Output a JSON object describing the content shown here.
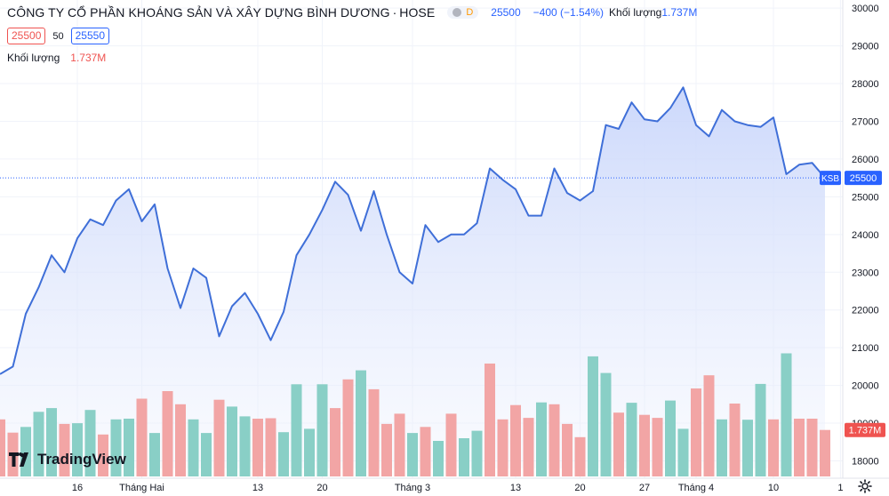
{
  "header": {
    "title": "CÔNG TY CỔ PHẦN KHOÁNG SẢN VÀ XÂY DỰNG BÌNH DƯƠNG",
    "separator": "·",
    "exchange": "HOSE",
    "badge": "D",
    "price": "25500",
    "change": "−400 (−1.54%)",
    "volume_label": "Khối lượng",
    "volume_value": "1.737M"
  },
  "legend": {
    "bid": "25500",
    "spread": "50",
    "ask": "25550",
    "volume_label": "Khối lượng",
    "volume_value": "1.737M"
  },
  "logo_text": "TradingView",
  "colors": {
    "line": "#3f6fd8",
    "fill_top": "#c9d6fb",
    "up": "#89cfc6",
    "down": "#f2a5a5",
    "price_tag": "#2962ff",
    "volume_tag": "#ef5350"
  },
  "chart_data": {
    "type": "line",
    "symbol_tag": "KSB",
    "last_price_tag": "25500",
    "last_volume_tag": "1.737M",
    "ylim": [
      17800,
      30050
    ],
    "yticks": [
      18000,
      19000,
      20000,
      21000,
      22000,
      23000,
      24000,
      25000,
      26000,
      27000,
      28000,
      29000,
      30000
    ],
    "x_tick_labels": [
      {
        "label": "16",
        "index": 6
      },
      {
        "label": "Tháng Hai",
        "index": 11
      },
      {
        "label": "13",
        "index": 20
      },
      {
        "label": "20",
        "index": 25
      },
      {
        "label": "Tháng 3",
        "index": 32
      },
      {
        "label": "13",
        "index": 40
      },
      {
        "label": "20",
        "index": 45
      },
      {
        "label": "27",
        "index": 50
      },
      {
        "label": "Tháng 4",
        "index": 54
      },
      {
        "label": "10",
        "index": 60
      },
      {
        "label": "1",
        "index": 65.2
      }
    ],
    "price": [
      20300,
      20500,
      21900,
      22600,
      23450,
      23000,
      23900,
      24400,
      24250,
      24900,
      25200,
      24350,
      24800,
      23100,
      22050,
      23100,
      22850,
      21300,
      22100,
      22450,
      21900,
      21200,
      21950,
      23450,
      24000,
      24650,
      25400,
      25050,
      24100,
      25150,
      24000,
      23000,
      22700,
      24250,
      23800,
      24000,
      24000,
      24300,
      25750,
      25450,
      25200,
      24500,
      24500,
      25750,
      25100,
      24900,
      25150,
      26900,
      26800,
      27500,
      27050,
      27000,
      27350,
      27900,
      26900,
      26600,
      27300,
      27000,
      26900,
      26850,
      27100,
      25600,
      25850,
      25900,
      25500
    ],
    "volume_dir": [
      "down",
      "down",
      "up",
      "up",
      "up",
      "down",
      "up",
      "up",
      "down",
      "up",
      "up",
      "down",
      "up",
      "down",
      "down",
      "up",
      "up",
      "down",
      "up",
      "up",
      "down",
      "down",
      "up",
      "up",
      "up",
      "up",
      "down",
      "down",
      "up",
      "down",
      "down",
      "down",
      "up",
      "down",
      "up",
      "down",
      "up",
      "up",
      "down",
      "down",
      "down",
      "down",
      "up",
      "down",
      "down",
      "down",
      "up",
      "up",
      "down",
      "up",
      "down",
      "down",
      "up",
      "up",
      "down",
      "down",
      "up",
      "down",
      "up",
      "up",
      "down",
      "up",
      "down",
      "down",
      "down"
    ],
    "volume_level": [
      19100,
      18750,
      18900,
      19300,
      19400,
      18980,
      19000,
      19350,
      18700,
      19100,
      19120,
      19650,
      18740,
      19850,
      19500,
      19100,
      18740,
      19620,
      19440,
      19180,
      19120,
      19130,
      18760,
      20030,
      18850,
      20030,
      19400,
      20160,
      20400,
      19900,
      18980,
      19250,
      18740,
      18900,
      18530,
      19250,
      18600,
      18800,
      20580,
      19100,
      19480,
      19140,
      19550,
      19500,
      18980,
      18630,
      20770,
      20330,
      19280,
      19540,
      19220,
      19140,
      19600,
      18850,
      19920,
      20270,
      19100,
      19520,
      19090,
      20040,
      19100,
      20850,
      19120,
      19120,
      18820
    ]
  }
}
